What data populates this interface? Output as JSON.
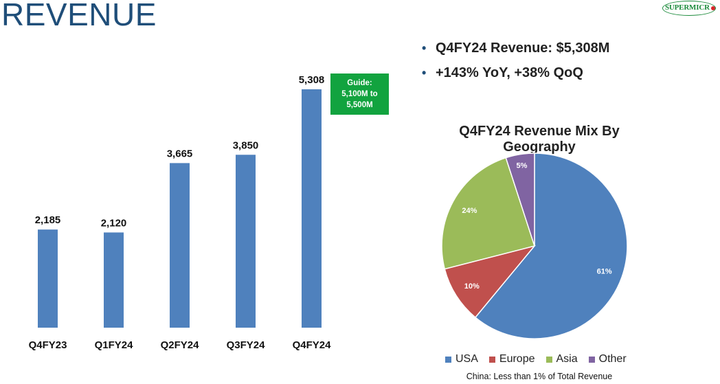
{
  "slide": {
    "title": "REVENUE",
    "logo_text": "SUPERMICR",
    "logo_color": "#1a8a3a",
    "bullets": [
      "Q4FY24 Revenue: $5,308M",
      "+143% YoY, +38% QoQ"
    ],
    "guide_lines": [
      "Guide:",
      "5,100M to",
      "5,500M"
    ],
    "guide_color": "#12a33f",
    "footnote": "China: Less than 1% of Total Revenue"
  },
  "chart_data": [
    {
      "type": "bar",
      "title": "",
      "categories": [
        "Q4FY23",
        "Q1FY24",
        "Q2FY24",
        "Q3FY24",
        "Q4FY24"
      ],
      "values": [
        2185,
        2120,
        3665,
        3850,
        5308
      ],
      "value_labels": [
        "2,185",
        "2,120",
        "3,665",
        "3,850",
        "5,308"
      ],
      "ylim": [
        0,
        5308
      ],
      "xlabel": "",
      "ylabel": "",
      "grid": false,
      "color": "#4f81bd"
    },
    {
      "type": "pie",
      "title": "Q4FY24 Revenue Mix By Geography",
      "labels": [
        "USA",
        "Europe",
        "Asia",
        "Other"
      ],
      "values": [
        61,
        10,
        24,
        5
      ],
      "value_labels": [
        "61%",
        "10%",
        "24%",
        "5%"
      ],
      "colors": [
        "#4f81bd",
        "#c0504d",
        "#9bbb59",
        "#8064a2"
      ],
      "legend": "bottom"
    }
  ]
}
